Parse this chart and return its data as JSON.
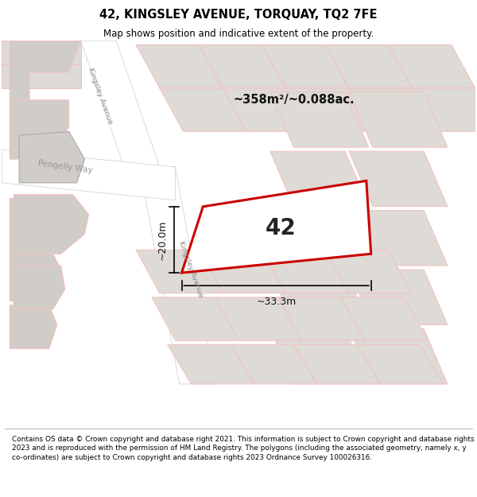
{
  "title": "42, KINGSLEY AVENUE, TORQUAY, TQ2 7FE",
  "subtitle": "Map shows position and indicative extent of the property.",
  "footer": "Contains OS data © Crown copyright and database right 2021. This information is subject to Crown copyright and database rights 2023 and is reproduced with the permission of HM Land Registry. The polygons (including the associated geometry, namely x, y co-ordinates) are subject to Crown copyright and database rights 2023 Ordnance Survey 100026316.",
  "area_label": "~358m²/~0.088ac.",
  "plot_number": "42",
  "dim_width": "~33.3m",
  "dim_height": "~20.0m",
  "bg_color": "#f2f0ed",
  "highlight_color": "#cc0000",
  "road_fill": "#ffffff",
  "plot_outline": "#f5c0c0",
  "bldg_fill": "#dedad6",
  "bldg_gray": "#d0ccc8"
}
